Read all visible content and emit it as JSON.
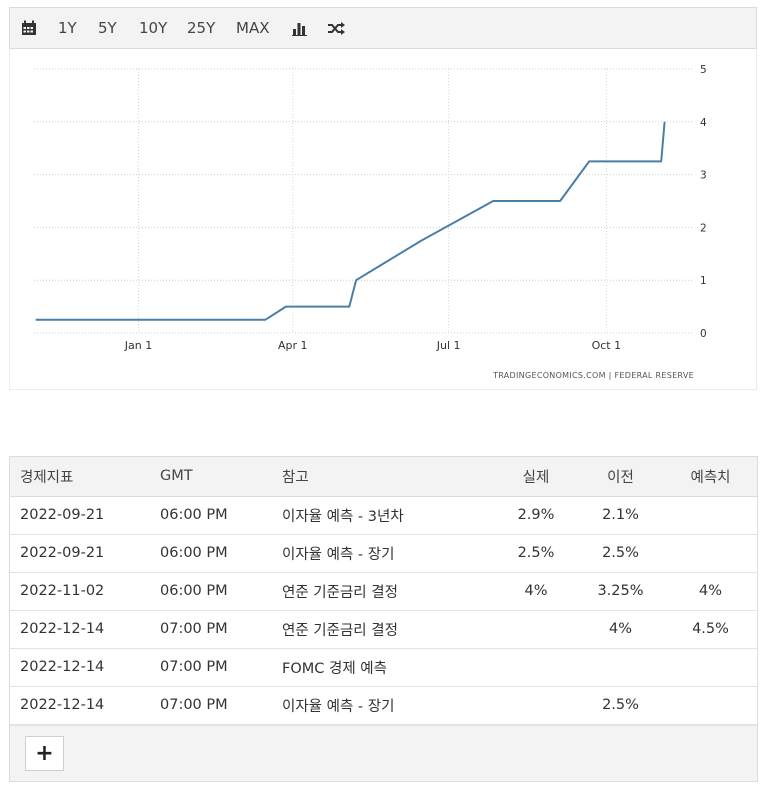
{
  "toolbar": {
    "calendar_icon": "calendar-icon",
    "ranges": [
      "1Y",
      "5Y",
      "10Y",
      "25Y",
      "MAX"
    ],
    "bar_icon": "bar-chart-icon",
    "shuffle_icon": "shuffle-icon"
  },
  "chart_data": {
    "type": "line",
    "source": "TRADINGECONOMICS.COM  |  FEDERAL RESERVE",
    "x_tick_labels": [
      "Jan 1",
      "Apr 1",
      "Jul 1",
      "Oct 1"
    ],
    "x_tick_dates": [
      "2022-01-01",
      "2022-04-01",
      "2022-07-01",
      "2022-10-01"
    ],
    "xlim": [
      "2021-11-01",
      "2022-11-20"
    ],
    "ylim": [
      0,
      5
    ],
    "y_ticks": [
      0,
      1,
      2,
      3,
      4,
      5
    ],
    "grid": true,
    "line_color": "#4a7fa8",
    "series": [
      {
        "x": [
          "2021-11-02",
          "2022-03-16",
          "2022-03-28",
          "2022-05-04",
          "2022-05-08",
          "2022-06-15",
          "2022-07-27",
          "2022-09-04",
          "2022-09-21",
          "2022-11-02",
          "2022-11-04"
        ],
        "y": [
          0.25,
          0.25,
          0.5,
          0.5,
          1.0,
          1.75,
          2.5,
          2.5,
          3.25,
          3.25,
          4.0
        ]
      }
    ]
  },
  "table": {
    "headers": [
      "경제지표",
      "GMT",
      "참고",
      "실제",
      "이전",
      "예측치"
    ],
    "rows": [
      [
        "2022-09-21",
        "06:00 PM",
        "이자율 예측 - 3년차",
        "2.9%",
        "2.1%",
        ""
      ],
      [
        "2022-09-21",
        "06:00 PM",
        "이자율 예측 - 장기",
        "2.5%",
        "2.5%",
        ""
      ],
      [
        "2022-11-02",
        "06:00 PM",
        "연준 기준금리 결정",
        "4%",
        "3.25%",
        "4%"
      ],
      [
        "2022-12-14",
        "07:00 PM",
        "연준 기준금리 결정",
        "",
        "4%",
        "4.5%"
      ],
      [
        "2022-12-14",
        "07:00 PM",
        "FOMC 경제 예측",
        "",
        "",
        ""
      ],
      [
        "2022-12-14",
        "07:00 PM",
        "이자율 예측 - 장기",
        "",
        "2.5%",
        ""
      ]
    ],
    "add_button": "+"
  }
}
